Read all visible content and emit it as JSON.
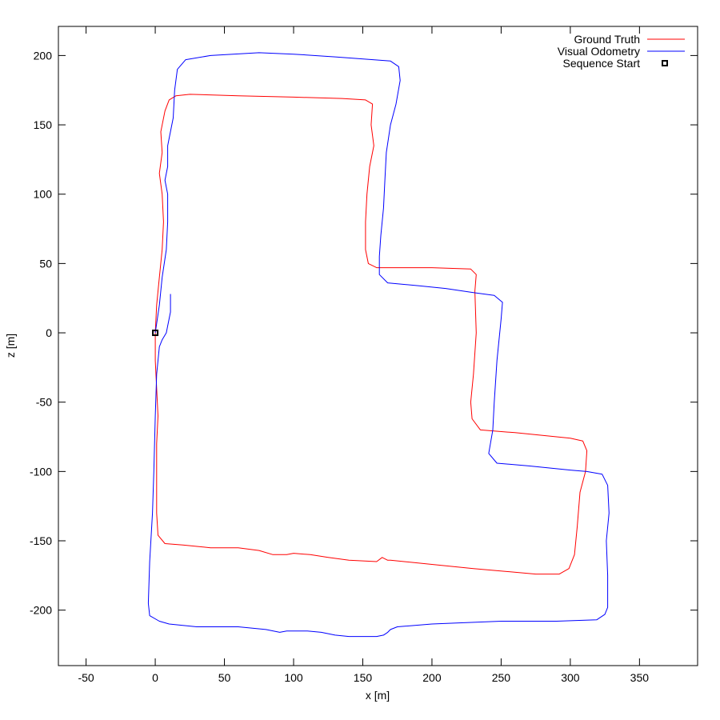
{
  "chart_data": {
    "type": "line",
    "title": "",
    "xlabel": "x [m]",
    "ylabel": "z [m]",
    "xlim": [
      -70,
      392
    ],
    "ylim": [
      -240,
      221
    ],
    "x_ticks": [
      -50,
      0,
      50,
      100,
      150,
      200,
      250,
      300,
      350
    ],
    "y_ticks": [
      -200,
      -150,
      -100,
      -50,
      0,
      50,
      100,
      150,
      200
    ],
    "x_tick_labels": [
      "-50",
      "0",
      "50",
      "100",
      "150",
      "200",
      "250",
      "300",
      "350"
    ],
    "y_tick_labels": [
      "-200",
      "-150",
      "-100",
      "-50",
      "0",
      "50",
      "100",
      "150",
      "200"
    ],
    "grid": false,
    "legend_position": "top-right",
    "series": [
      {
        "name": "Ground Truth",
        "color": "#ff0000",
        "points": [
          [
            0,
            0
          ],
          [
            1,
            20
          ],
          [
            3,
            40
          ],
          [
            5,
            60
          ],
          [
            6,
            80
          ],
          [
            5,
            100
          ],
          [
            3,
            115
          ],
          [
            5,
            130
          ],
          [
            4,
            145
          ],
          [
            7,
            160
          ],
          [
            10,
            168
          ],
          [
            15,
            171
          ],
          [
            25,
            172
          ],
          [
            60,
            171
          ],
          [
            100,
            170
          ],
          [
            135,
            169
          ],
          [
            152,
            168
          ],
          [
            157,
            165
          ],
          [
            156,
            150
          ],
          [
            158,
            135
          ],
          [
            155,
            120
          ],
          [
            153,
            100
          ],
          [
            152,
            80
          ],
          [
            152,
            60
          ],
          [
            154,
            50
          ],
          [
            160,
            47
          ],
          [
            200,
            47
          ],
          [
            228,
            46
          ],
          [
            232,
            42
          ],
          [
            231,
            30
          ],
          [
            232,
            0
          ],
          [
            230,
            -30
          ],
          [
            228,
            -50
          ],
          [
            229,
            -62
          ],
          [
            235,
            -70
          ],
          [
            260,
            -72
          ],
          [
            300,
            -76
          ],
          [
            309,
            -78
          ],
          [
            312,
            -85
          ],
          [
            311,
            -100
          ],
          [
            307,
            -115
          ],
          [
            305,
            -140
          ],
          [
            303,
            -160
          ],
          [
            299,
            -170
          ],
          [
            292,
            -174
          ],
          [
            275,
            -174
          ],
          [
            230,
            -170
          ],
          [
            200,
            -167
          ],
          [
            170,
            -164
          ],
          [
            168,
            -164
          ],
          [
            164,
            -162
          ],
          [
            160,
            -165
          ],
          [
            140,
            -164
          ],
          [
            125,
            -162
          ],
          [
            112,
            -160
          ],
          [
            100,
            -159
          ],
          [
            95,
            -160
          ],
          [
            85,
            -160
          ],
          [
            75,
            -157
          ],
          [
            60,
            -155
          ],
          [
            40,
            -155
          ],
          [
            20,
            -153
          ],
          [
            7,
            -152
          ],
          [
            2,
            -146
          ],
          [
            1,
            -130
          ],
          [
            1,
            -100
          ],
          [
            1,
            -80
          ],
          [
            2,
            -60
          ],
          [
            1,
            -40
          ],
          [
            0,
            -20
          ],
          [
            0,
            0
          ]
        ]
      },
      {
        "name": "Visual Odometry",
        "color": "#0000ff",
        "points": [
          [
            0,
            0
          ],
          [
            3,
            20
          ],
          [
            5,
            40
          ],
          [
            8,
            60
          ],
          [
            9,
            80
          ],
          [
            9,
            100
          ],
          [
            7,
            110
          ],
          [
            9,
            120
          ],
          [
            9,
            135
          ],
          [
            13,
            155
          ],
          [
            14,
            175
          ],
          [
            16,
            190
          ],
          [
            22,
            197
          ],
          [
            40,
            200
          ],
          [
            75,
            202
          ],
          [
            100,
            201
          ],
          [
            130,
            199
          ],
          [
            170,
            196
          ],
          [
            176,
            192
          ],
          [
            177,
            182
          ],
          [
            174,
            165
          ],
          [
            170,
            150
          ],
          [
            167,
            130
          ],
          [
            166,
            110
          ],
          [
            165,
            90
          ],
          [
            163,
            70
          ],
          [
            162,
            55
          ],
          [
            162,
            42
          ],
          [
            168,
            36
          ],
          [
            190,
            34
          ],
          [
            210,
            32
          ],
          [
            230,
            29
          ],
          [
            245,
            27
          ],
          [
            251,
            22
          ],
          [
            250,
            10
          ],
          [
            247,
            -20
          ],
          [
            245,
            -50
          ],
          [
            244,
            -70
          ],
          [
            241,
            -87
          ],
          [
            247,
            -94
          ],
          [
            270,
            -96
          ],
          [
            300,
            -99
          ],
          [
            312,
            -100
          ],
          [
            323,
            -102
          ],
          [
            327,
            -110
          ],
          [
            328,
            -130
          ],
          [
            326,
            -150
          ],
          [
            327,
            -175
          ],
          [
            327,
            -198
          ],
          [
            325,
            -203
          ],
          [
            319,
            -207
          ],
          [
            290,
            -208
          ],
          [
            250,
            -208
          ],
          [
            200,
            -210
          ],
          [
            175,
            -212
          ],
          [
            170,
            -214
          ],
          [
            168,
            -216
          ],
          [
            165,
            -218
          ],
          [
            160,
            -219
          ],
          [
            140,
            -219
          ],
          [
            130,
            -218
          ],
          [
            120,
            -216
          ],
          [
            110,
            -215
          ],
          [
            95,
            -215
          ],
          [
            90,
            -216
          ],
          [
            80,
            -214
          ],
          [
            60,
            -212
          ],
          [
            40,
            -212
          ],
          [
            30,
            -212
          ],
          [
            20,
            -211
          ],
          [
            10,
            -210
          ],
          [
            3,
            -208
          ],
          [
            -4,
            -204
          ],
          [
            -5,
            -195
          ],
          [
            -4,
            -165
          ],
          [
            -2,
            -130
          ],
          [
            -1,
            -100
          ],
          [
            0,
            -60
          ],
          [
            1,
            -30
          ],
          [
            3,
            -10
          ],
          [
            5,
            -5
          ],
          [
            8,
            0
          ],
          [
            9,
            5
          ],
          [
            11,
            15
          ],
          [
            11,
            28
          ]
        ]
      }
    ],
    "markers": [
      {
        "name": "Sequence Start",
        "x": 0,
        "y": 0,
        "symbol": "square",
        "color": "#000000"
      }
    ]
  }
}
